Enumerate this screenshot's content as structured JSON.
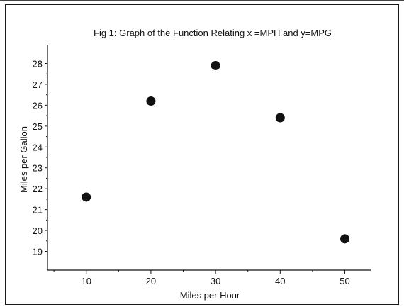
{
  "chart_data": {
    "type": "scatter",
    "title": "Fig 1: Graph of the Function Relating x =MPH and y=MPG",
    "xlabel": "Miles per Hour",
    "ylabel": "Miles per Gallon",
    "xlim": [
      4,
      54
    ],
    "ylim": [
      18.1,
      28.9
    ],
    "x_ticks": [
      10,
      20,
      30,
      40,
      50
    ],
    "y_ticks": [
      19,
      20,
      21,
      22,
      23,
      24,
      25,
      26,
      27,
      28
    ],
    "points": [
      {
        "x": 10,
        "y": 21.6
      },
      {
        "x": 20,
        "y": 26.2
      },
      {
        "x": 30,
        "y": 27.9
      },
      {
        "x": 40,
        "y": 25.4
      },
      {
        "x": 50,
        "y": 19.6
      }
    ],
    "grid": false,
    "marker_color": "#111111"
  }
}
